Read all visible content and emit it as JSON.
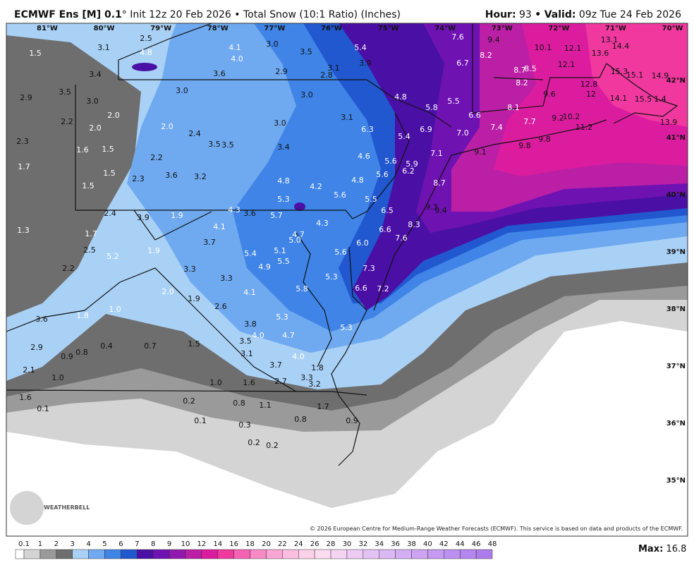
{
  "header": {
    "model": "ECMWF Ens [M] 0.1",
    "title": "° Init 12z 20 Feb 2026 • Total Snow (10:1 Ratio) (Inches)",
    "hour_label": "Hour:",
    "hour": 93,
    "separator": "•",
    "valid_label": "Valid:",
    "valid": "09z Tue 24 Feb 2026"
  },
  "map": {
    "longitudes": [
      "81°W",
      "80°W",
      "79°W",
      "78°W",
      "77°W",
      "76°W",
      "75°W",
      "74°W",
      "73°W",
      "72°W",
      "71°W",
      "70°W"
    ],
    "latitudes": [
      "42°N",
      "41°N",
      "40°N",
      "39°N",
      "38°N",
      "37°N",
      "36°N",
      "35°N"
    ],
    "snow_totals": [
      "2.5",
      "4.8",
      "3.1",
      "1.5",
      "3.4",
      "4.1",
      "3.0",
      "4.0",
      "3.5",
      "5.4",
      "3.9",
      "3.1",
      "2.8",
      "2.9",
      "3.6",
      "7.6",
      "9.4",
      "10.1",
      "12.1",
      "13.1",
      "14.4",
      "13.6",
      "8.2",
      "6.7",
      "12.1",
      "8.7",
      "8.5",
      "15.3",
      "15.1",
      "14.9",
      "3.5",
      "2.9",
      "3.0",
      "3.0",
      "3.0",
      "4.8",
      "8.2",
      "12.8",
      "9.6",
      "12",
      "14.1",
      "15.5",
      "1.4",
      "5.5",
      "5.8",
      "8.1",
      "2.0",
      "2.2",
      "3.1",
      "6.6",
      "7.7",
      "9.2",
      "10.2",
      "13.9",
      "2.0",
      "2.0",
      "3.0",
      "6.3",
      "6.9",
      "7.0",
      "7.4",
      "11.2",
      "2.3",
      "2.4",
      "3.5",
      "3.5",
      "5.4",
      "9.8",
      "9.8",
      "1.6",
      "1.5",
      "3.4",
      "7.1",
      "9.1",
      "2.2",
      "1.7",
      "4.6",
      "5.6",
      "5.9",
      "1.5",
      "3.6",
      "3.2",
      "6.2",
      "5.6",
      "2.3",
      "1.5",
      "4.8",
      "4.2",
      "4.8",
      "5.6",
      "8.7",
      "5.3",
      "5.5",
      "2.4",
      "3.9",
      "1.9",
      "4.3",
      "3.6",
      "5.7",
      "9.3",
      "9.4",
      "6.5",
      "1.3",
      "1.7",
      "4.1",
      "4.3",
      "8.3",
      "6.6",
      "3.7",
      "5.0",
      "4.7",
      "7.6",
      "6.0",
      "2.5",
      "5.2",
      "1.9",
      "5.4",
      "5.1",
      "5.5",
      "5.6",
      "2.2",
      "3.3",
      "4.9",
      "7.3",
      "3.3",
      "5.3",
      "4.1",
      "5.8",
      "6.6",
      "7.2",
      "2.0",
      "1.9",
      "2.6",
      "1.0",
      "3.6",
      "1.8",
      "5.3",
      "3.8",
      "4.0",
      "4.7",
      "3.5",
      "5.3",
      "2.9",
      "0.4",
      "0.7",
      "1.5",
      "0.9",
      "0.8",
      "3.1",
      "4.0",
      "3.7",
      "1.8",
      "2.1",
      "1.0",
      "3.3",
      "1.0",
      "1.6",
      "2.7",
      "3.2",
      "1.6",
      "0.1",
      "0.2",
      "0.8",
      "1.1",
      "1.7",
      "0.8",
      "0.9",
      "0.1",
      "0.3",
      "0.2",
      "0.2"
    ],
    "logo": "WEATHERBELL",
    "copyright": "© 2026 European Centre for Medium-Range Weather Forecasts (ECMWF). This service is based on data and products of the ECMWF."
  },
  "legend": {
    "levels": [
      0.1,
      1,
      2,
      3,
      4,
      5,
      6,
      7,
      8,
      9,
      10,
      12,
      14,
      16,
      18,
      20,
      22,
      24,
      26,
      28,
      30,
      32,
      34,
      36,
      38,
      40,
      42,
      44,
      46,
      48
    ],
    "colors": [
      "#ffffff",
      "#d4d4d4",
      "#9a9a9a",
      "#6e6e6e",
      "#a9d1f6",
      "#6fa9f0",
      "#3f84e6",
      "#2157cf",
      "#4a10a6",
      "#6e12b2",
      "#9118ae",
      "#bb1fa6",
      "#dc1c9f",
      "#f0389f",
      "#f562b4",
      "#f889c6",
      "#faa6d4",
      "#fbbde0",
      "#fcd1ea",
      "#fbdcf0",
      "#f4d4f3",
      "#ecccf4",
      "#e4c2f4",
      "#dcb8f4",
      "#d4aef4",
      "#cca4f3",
      "#c49af2",
      "#bc90f1",
      "#b486ef",
      "#ac7cec"
    ]
  },
  "footer": {
    "max_label": "Max:",
    "max": 16.8
  }
}
